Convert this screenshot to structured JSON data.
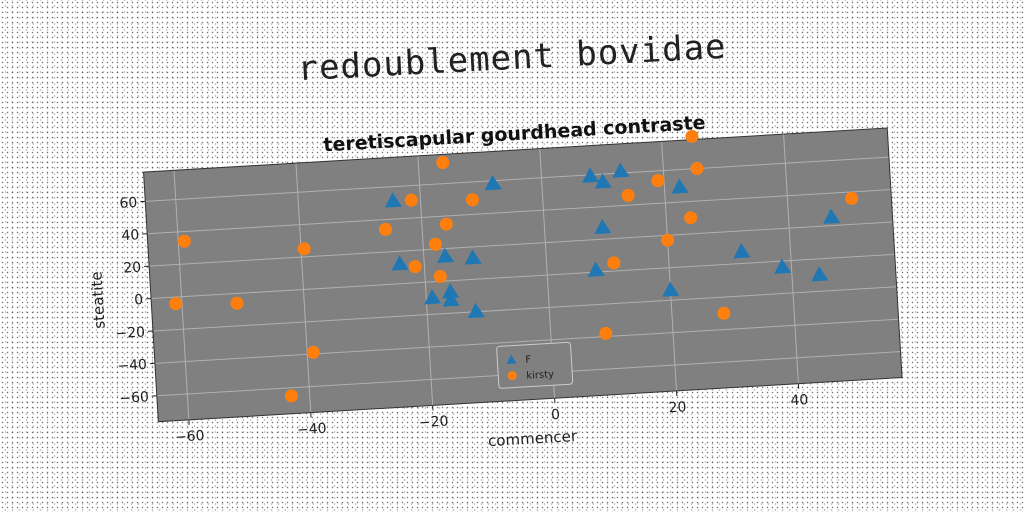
{
  "figure": {
    "suptitle": "redoublement bovidae"
  },
  "chart_data": {
    "type": "scatter",
    "title": "teretiscapular gourdhead contraste",
    "xlabel": "commencer",
    "ylabel": "steatite",
    "xlim": [
      -65,
      57
    ],
    "ylim": [
      -76,
      78
    ],
    "xticks": [
      -60,
      -40,
      -20,
      0,
      20,
      40
    ],
    "yticks": [
      -60,
      -40,
      -20,
      0,
      20,
      40,
      60
    ],
    "grid": true,
    "legend_position": "lower center",
    "series": [
      {
        "name": "F",
        "marker": "triangle",
        "color": "#1f77b4",
        "x": [
          -24.5,
          -8,
          8,
          10,
          13,
          22.5,
          9.5,
          -24,
          -16.5,
          -12,
          -19,
          -16,
          -16,
          -12,
          8,
          20,
          32,
          38.5,
          44.5,
          47
        ],
        "y": [
          51,
          58,
          59,
          55,
          61,
          49,
          27,
          12,
          15,
          13,
          -10,
          -7,
          -12,
          -20,
          1,
          -14,
          7,
          -4,
          -10,
          25
        ]
      },
      {
        "name": "kirsty",
        "marker": "circle",
        "color": "#ff7f0e",
        "x": [
          -16,
          -21.5,
          -11.5,
          25,
          25.5,
          19,
          14,
          -59,
          -39.5,
          -26,
          -16,
          -18,
          24,
          20,
          -21.5,
          -17.5,
          11,
          -61,
          -51,
          -39,
          9,
          28.5,
          -43,
          50.5
        ],
        "y": [
          73,
          51,
          49,
          80,
          60,
          54,
          46,
          34,
          25,
          34,
          35,
          23,
          30,
          17,
          10,
          3,
          5,
          -4,
          -6,
          -39,
          -38,
          -30,
          -65,
          36
        ]
      }
    ]
  }
}
